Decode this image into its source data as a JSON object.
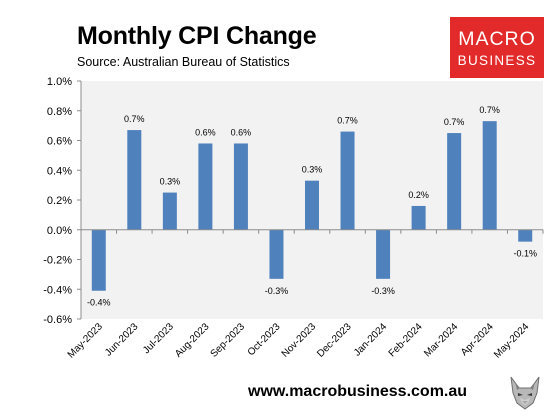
{
  "header": {
    "title": "Monthly CPI Change",
    "subtitle": "Source: Australian Bureau of Statistics"
  },
  "logo": {
    "line1": "MACRO",
    "line2": "BUSINESS",
    "color": "#e32a2a"
  },
  "footer": {
    "url": "www.macrobusiness.com.au",
    "icon": "wolf-icon"
  },
  "chart_data": {
    "type": "bar",
    "categories": [
      "May-2023",
      "Jun-2023",
      "Jul-2023",
      "Aug-2023",
      "Sep-2023",
      "Oct-2023",
      "Nov-2023",
      "Dec-2023",
      "Jan-2024",
      "Feb-2024",
      "Mar-2024",
      "Apr-2024",
      "May-2024"
    ],
    "values": [
      -0.41,
      0.67,
      0.25,
      0.58,
      0.58,
      -0.33,
      0.33,
      0.66,
      -0.33,
      0.16,
      0.65,
      0.73,
      -0.08
    ],
    "data_labels": [
      "-0.4%",
      "0.7%",
      "0.3%",
      "0.6%",
      "0.6%",
      "-0.3%",
      "0.3%",
      "0.7%",
      "-0.3%",
      "0.2%",
      "0.7%",
      "0.7%",
      "-0.1%"
    ],
    "y_ticks": [
      "1.0%",
      "0.8%",
      "0.6%",
      "0.4%",
      "0.2%",
      "0.0%",
      "-0.2%",
      "-0.4%",
      "-0.6%"
    ],
    "ylim": [
      -0.6,
      1.0
    ],
    "grid": false,
    "legend": "none",
    "bar_color": "#4f81bd",
    "plot_background": "#f2f2f2"
  }
}
